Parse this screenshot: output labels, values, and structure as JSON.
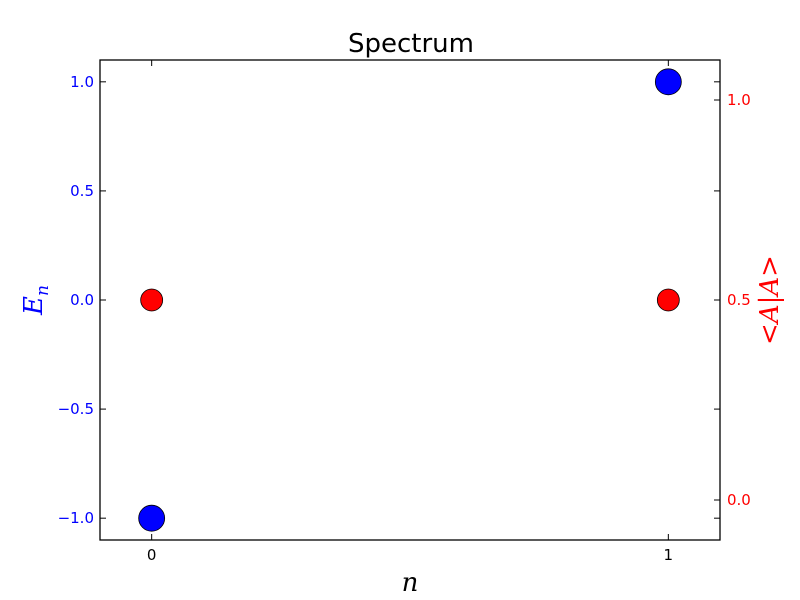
{
  "chart_data": {
    "type": "scatter",
    "title": "Spectrum",
    "xlabel": "n",
    "ylabel_left": "E",
    "ylabel_left_sub": "n",
    "ylabel_right": "<A|A>",
    "xlim": [
      -0.1,
      1.1
    ],
    "ylim_left": [
      -1.1,
      1.1
    ],
    "ylim_right": [
      -0.1,
      1.1
    ],
    "x_ticks": [
      "0",
      "1"
    ],
    "x_tick_values": [
      0,
      1
    ],
    "y_ticks_left": [
      "−1.0",
      "−0.5",
      "0.0",
      "0.5",
      "1.0"
    ],
    "y_tick_values_left": [
      -1.0,
      -0.5,
      0.0,
      0.5,
      1.0
    ],
    "y_ticks_right": [
      "0.0",
      "0.5",
      "1.0"
    ],
    "y_tick_values_right": [
      0.0,
      0.5,
      1.0
    ],
    "grid": false,
    "series": [
      {
        "axis": "left",
        "color": "#0000ff",
        "points": [
          {
            "x": 0,
            "y": -1.0
          },
          {
            "x": 1,
            "y": 1.0
          }
        ]
      },
      {
        "axis": "right",
        "color": "#ff0000",
        "points": [
          {
            "x": 0,
            "y": 0.5
          },
          {
            "x": 1,
            "y": 0.5
          }
        ]
      }
    ],
    "colors": {
      "left_axis": "#0000ff",
      "right_axis": "#ff0000"
    }
  }
}
